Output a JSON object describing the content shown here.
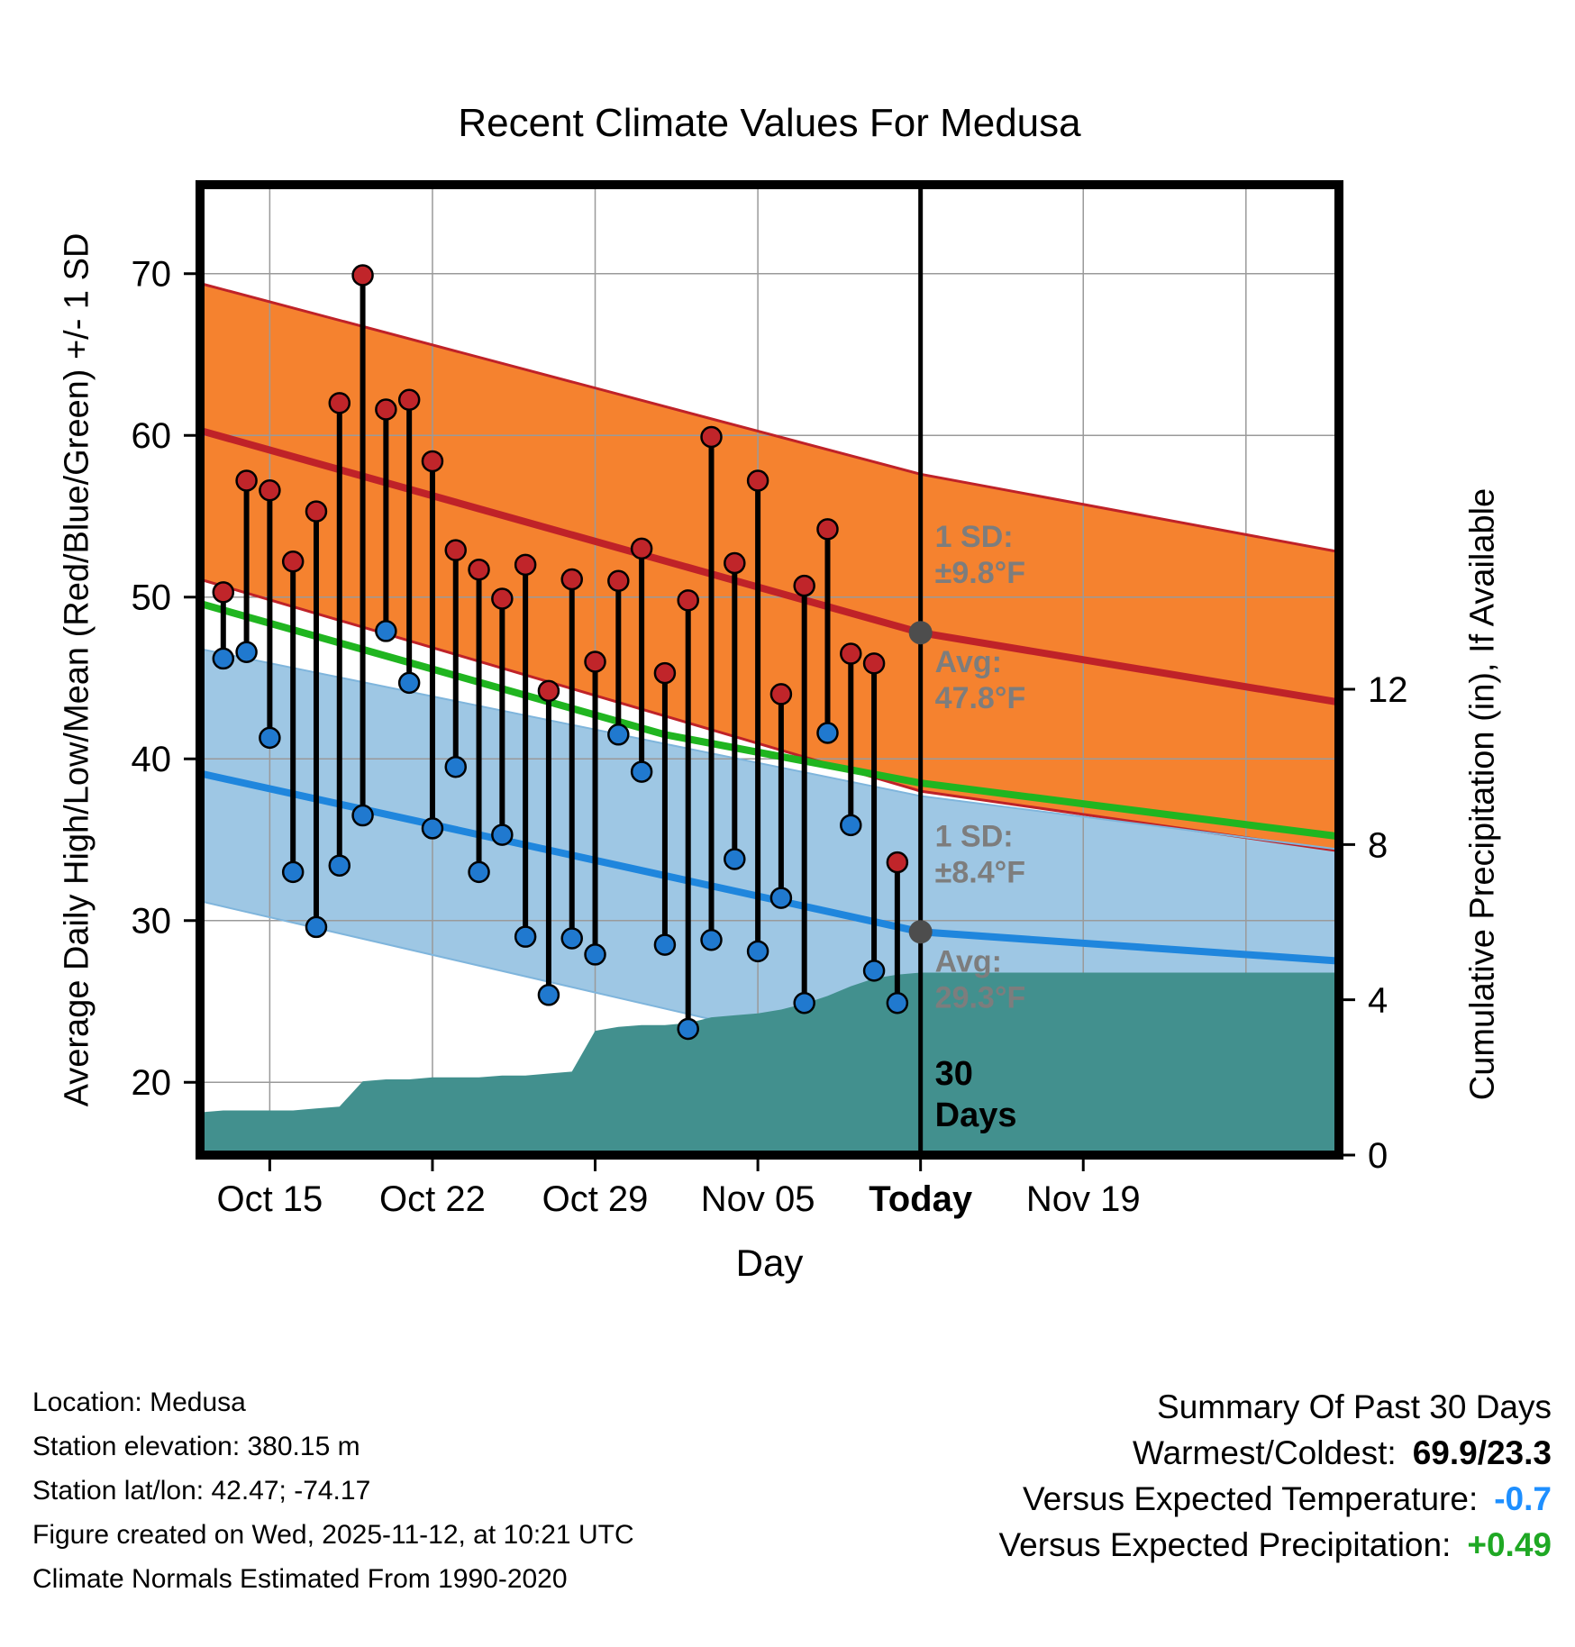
{
  "title": "Recent Climate Values For Medusa",
  "axes": {
    "left_label": "Average Daily High/Low/Mean (Red/Blue/Green) +/- 1 SD",
    "right_label": "Cumulative Precipitation (in), If Available",
    "x_label": "Day",
    "x_ticks": [
      {
        "day": 3,
        "label": "Oct 15",
        "bold": false
      },
      {
        "day": 10,
        "label": "Oct 22",
        "bold": false
      },
      {
        "day": 17,
        "label": "Oct 29",
        "bold": false
      },
      {
        "day": 24,
        "label": "Nov 05",
        "bold": false
      },
      {
        "day": 31,
        "label": "Today",
        "bold": true
      },
      {
        "day": 38,
        "label": "Nov 19",
        "bold": false
      }
    ],
    "x_grid_extra_days": [
      45
    ],
    "y_left_ticks": [
      20,
      30,
      40,
      50,
      60,
      70
    ],
    "y_right_ticks": [
      0,
      4,
      8,
      12
    ]
  },
  "chart_data": {
    "type": "combo: daily high/low lollipops + climate-normal bands (area/line) + cumulative precipitation area",
    "x_domain": {
      "start_date": "Oct 12",
      "end_date": "Nov 30",
      "days": 49
    },
    "temp_axis_range": [
      15.5,
      75.5
    ],
    "precip_axis_range": [
      0,
      25
    ],
    "today_day_index": 31,
    "daily": {
      "dates": [
        "Oct 13",
        "Oct 14",
        "Oct 15",
        "Oct 16",
        "Oct 17",
        "Oct 18",
        "Oct 19",
        "Oct 20",
        "Oct 21",
        "Oct 22",
        "Oct 23",
        "Oct 24",
        "Oct 25",
        "Oct 26",
        "Oct 27",
        "Oct 28",
        "Oct 29",
        "Oct 30",
        "Oct 31",
        "Nov 01",
        "Nov 02",
        "Nov 03",
        "Nov 04",
        "Nov 05",
        "Nov 06",
        "Nov 07",
        "Nov 08",
        "Nov 09",
        "Nov 10",
        "Nov 11"
      ],
      "day_index": [
        1,
        2,
        3,
        4,
        5,
        6,
        7,
        8,
        9,
        10,
        11,
        12,
        13,
        14,
        15,
        16,
        17,
        18,
        19,
        20,
        21,
        22,
        23,
        24,
        25,
        26,
        27,
        28,
        29,
        30
      ],
      "high": [
        50.3,
        57.2,
        56.6,
        52.2,
        55.3,
        62.0,
        69.9,
        61.6,
        62.2,
        58.4,
        52.9,
        51.7,
        49.9,
        52.0,
        44.2,
        51.1,
        46.0,
        51.0,
        53.0,
        45.3,
        49.8,
        59.9,
        52.1,
        57.2,
        44.0,
        50.7,
        54.2,
        46.5,
        45.9,
        33.6
      ],
      "low": [
        46.2,
        46.6,
        41.3,
        33.0,
        29.6,
        33.4,
        36.5,
        47.9,
        44.7,
        35.7,
        39.5,
        33.0,
        35.3,
        29.0,
        25.4,
        28.9,
        27.9,
        41.5,
        39.2,
        28.5,
        23.3,
        28.8,
        33.8,
        28.1,
        31.4,
        24.9,
        41.6,
        35.9,
        26.9,
        24.9
      ]
    },
    "normals": {
      "high_upper": [
        [
          0,
          69.4
        ],
        [
          31,
          57.6
        ],
        [
          49,
          52.8
        ]
      ],
      "high_avg": [
        [
          0,
          60.3
        ],
        [
          31,
          47.8
        ],
        [
          49,
          43.5
        ]
      ],
      "high_lower": [
        [
          0,
          51.1
        ],
        [
          31,
          38.0
        ],
        [
          49,
          34.3
        ]
      ],
      "mean": [
        [
          0,
          49.6
        ],
        [
          20,
          41.5
        ],
        [
          31,
          38.5
        ],
        [
          49,
          35.2
        ]
      ],
      "low_upper": [
        [
          0,
          46.8
        ],
        [
          31,
          37.7
        ],
        [
          49,
          34.4
        ]
      ],
      "low_avg": [
        [
          0,
          39.1
        ],
        [
          31,
          29.3
        ],
        [
          49,
          27.5
        ]
      ],
      "low_lower": [
        [
          0,
          31.2
        ],
        [
          31,
          20.9
        ],
        [
          49,
          18.1
        ]
      ]
    },
    "precip_cumulative": {
      "start_day": 0,
      "values": [
        1.1,
        1.15,
        1.15,
        1.15,
        1.15,
        1.2,
        1.25,
        1.9,
        1.95,
        1.95,
        2.0,
        2.0,
        2.0,
        2.05,
        2.05,
        2.1,
        2.15,
        3.2,
        3.3,
        3.35,
        3.35,
        3.4,
        3.55,
        3.6,
        3.65,
        3.75,
        3.9,
        4.1,
        4.35,
        4.55,
        4.65,
        4.7,
        4.7,
        4.7,
        4.7,
        4.7,
        4.7,
        4.7,
        4.7,
        4.7,
        4.7,
        4.7,
        4.7,
        4.7,
        4.7,
        4.7,
        4.7,
        4.7,
        4.7,
        4.7
      ]
    },
    "annotations": {
      "high_sd_line1": "1 SD:",
      "high_sd_line2": "±9.8°F",
      "high_avg_line1": "Avg:",
      "high_avg_line2": "47.8°F",
      "high_avg_value": 47.8,
      "low_sd_line1": "1 SD:",
      "low_sd_line2": "±8.4°F",
      "low_avg_line1": "Avg:",
      "low_avg_line2": "29.3°F",
      "low_avg_value": 29.3,
      "days_line1": "30",
      "days_line2": "Days"
    },
    "colors": {
      "high_band": "#f5822f",
      "high_line": "#bf2228",
      "low_band": "#9ec7e4",
      "low_band_edge": "#7fb5dc",
      "low_line": "#1f86dd",
      "mean_line": "#20b520",
      "precip_area": "#42908e",
      "marker_high": "#c0252a",
      "marker_low": "#2079cf",
      "annotation_gray": "#7d7d7d",
      "gray_dot": "#4d4d4d",
      "today_line": "#000000",
      "grid": "#9a9a9a"
    }
  },
  "footer": {
    "location": "Location: Medusa",
    "elevation": "Station elevation: 380.15 m",
    "latlon": "Station lat/lon: 42.47; -74.17",
    "created": "Figure created on Wed, 2025-11-12, at 10:21 UTC",
    "normals": "Climate Normals Estimated From 1990-2020"
  },
  "summary": {
    "title": "Summary Of Past 30 Days",
    "warmest_label": "Warmest/Coldest:",
    "warmest_value": "69.9/23.3",
    "warmest_color": "#000000",
    "temp_label": "Versus Expected Temperature:",
    "temp_value": "-0.7",
    "temp_color": "#1e8fff",
    "precip_label": "Versus Expected Precipitation:",
    "precip_value": "+0.49",
    "precip_color": "#1fa824"
  }
}
